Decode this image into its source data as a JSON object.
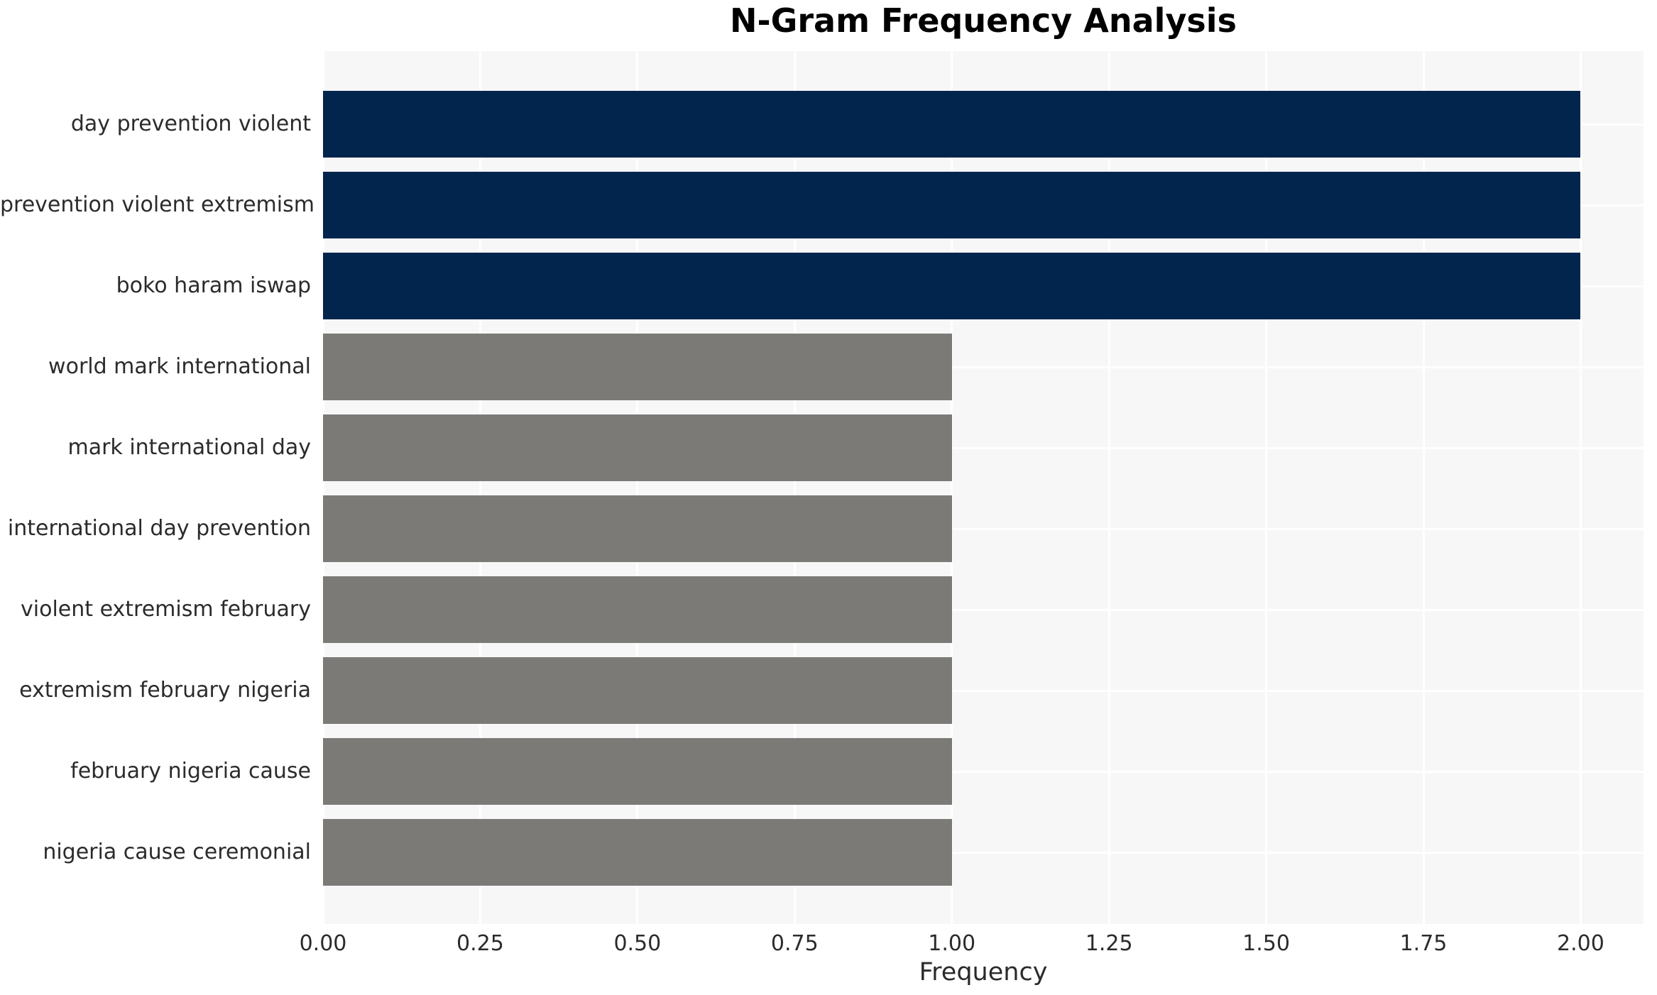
{
  "page": {
    "background": "#ffffff"
  },
  "chart_data": {
    "type": "bar",
    "orientation": "horizontal",
    "title": "N-Gram Frequency Analysis",
    "xlabel": "Frequency",
    "ylabel": "",
    "categories": [
      "day prevention violent",
      "prevention violent extremism",
      "boko haram iswap",
      "world mark international",
      "mark international day",
      "international day prevention",
      "violent extremism february",
      "extremism february nigeria",
      "february nigeria cause",
      "nigeria cause ceremonial"
    ],
    "values": [
      2,
      2,
      2,
      1,
      1,
      1,
      1,
      1,
      1,
      1
    ],
    "bar_colors": [
      "#02254d",
      "#02254d",
      "#02254d",
      "#7b7a77",
      "#7b7a77",
      "#7b7a77",
      "#7b7a77",
      "#7b7a77",
      "#7b7a77",
      "#7b7a77"
    ],
    "xlim": [
      0,
      2.1
    ],
    "xticks": {
      "values": [
        0,
        0.25,
        0.5,
        0.75,
        1.0,
        1.25,
        1.5,
        1.75,
        2.0
      ],
      "labels": [
        "0.00",
        "0.25",
        "0.50",
        "0.75",
        "1.00",
        "1.25",
        "1.50",
        "1.75",
        "2.00"
      ]
    },
    "grid": true,
    "legend": false,
    "plot_background": "#f7f7f7",
    "gridline_color": "#ffffff",
    "text_color": "#2b2b2b",
    "title_color": "#000000"
  }
}
